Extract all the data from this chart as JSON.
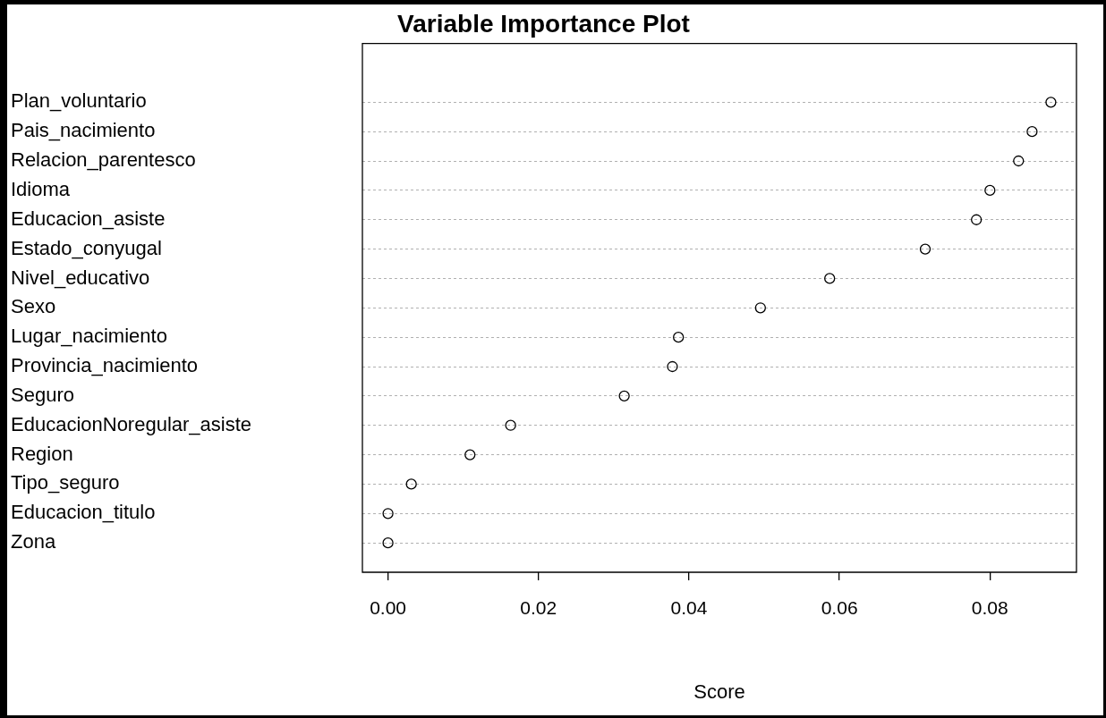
{
  "chart_data": {
    "type": "scatter",
    "title": "Variable Importance Plot",
    "xlabel": "Score",
    "orientation": "horizontal",
    "categories": [
      "Plan_voluntario",
      "Pais_nacimiento",
      "Relacion_parentesco",
      "Idioma",
      "Educacion_asiste",
      "Estado_conyugal",
      "Nivel_educativo",
      "Sexo",
      "Lugar_nacimiento",
      "Provincia_nacimiento",
      "Seguro",
      "EducacionNoregular_asiste",
      "Region",
      "Tipo_seguro",
      "Educacion_titulo",
      "Zona"
    ],
    "values": [
      0.0881,
      0.0856,
      0.0838,
      0.08,
      0.0782,
      0.0714,
      0.0587,
      0.0495,
      0.0386,
      0.0378,
      0.0314,
      0.0163,
      0.0109,
      0.0031,
      0,
      0
    ],
    "color": "#000000",
    "marker": "circle",
    "grid": "y",
    "xlim": [
      -0.0034,
      0.0915
    ],
    "xticks": [
      {
        "value": 0,
        "label": "0.00"
      },
      {
        "value": 0.02,
        "label": "0.02"
      },
      {
        "value": 0.04,
        "label": "0.04"
      },
      {
        "value": 0.06,
        "label": "0.06"
      },
      {
        "value": 0.08,
        "label": "0.08"
      }
    ]
  }
}
